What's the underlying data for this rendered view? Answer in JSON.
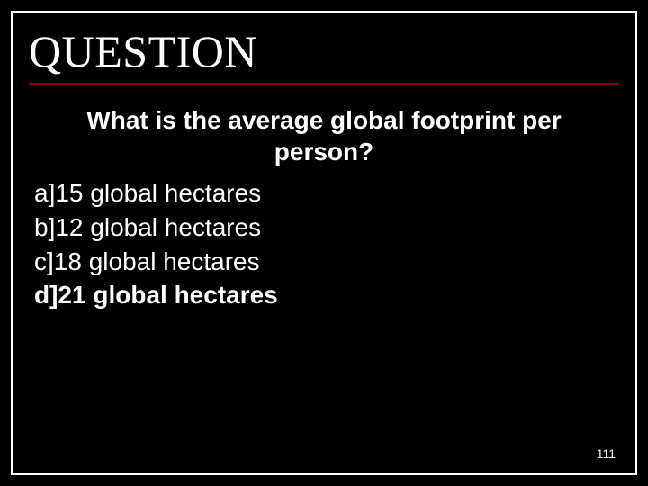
{
  "slide": {
    "title": "QUESTION",
    "question": "What is the average global footprint per person?",
    "options": [
      {
        "label": "a]15 global hectares",
        "bold": false
      },
      {
        "label": "b]12 global hectares",
        "bold": false
      },
      {
        "label": "c]18 global hectares",
        "bold": false
      },
      {
        "label": "d]21 global hectares",
        "bold": true
      }
    ],
    "page_number": "111",
    "colors": {
      "background": "#000000",
      "text": "#ffffff",
      "underline": "#8b0000",
      "border": "#ffffff"
    },
    "typography": {
      "title_font": "Times New Roman",
      "body_font": "Arial",
      "title_size_pt": 38,
      "body_size_pt": 21
    }
  }
}
